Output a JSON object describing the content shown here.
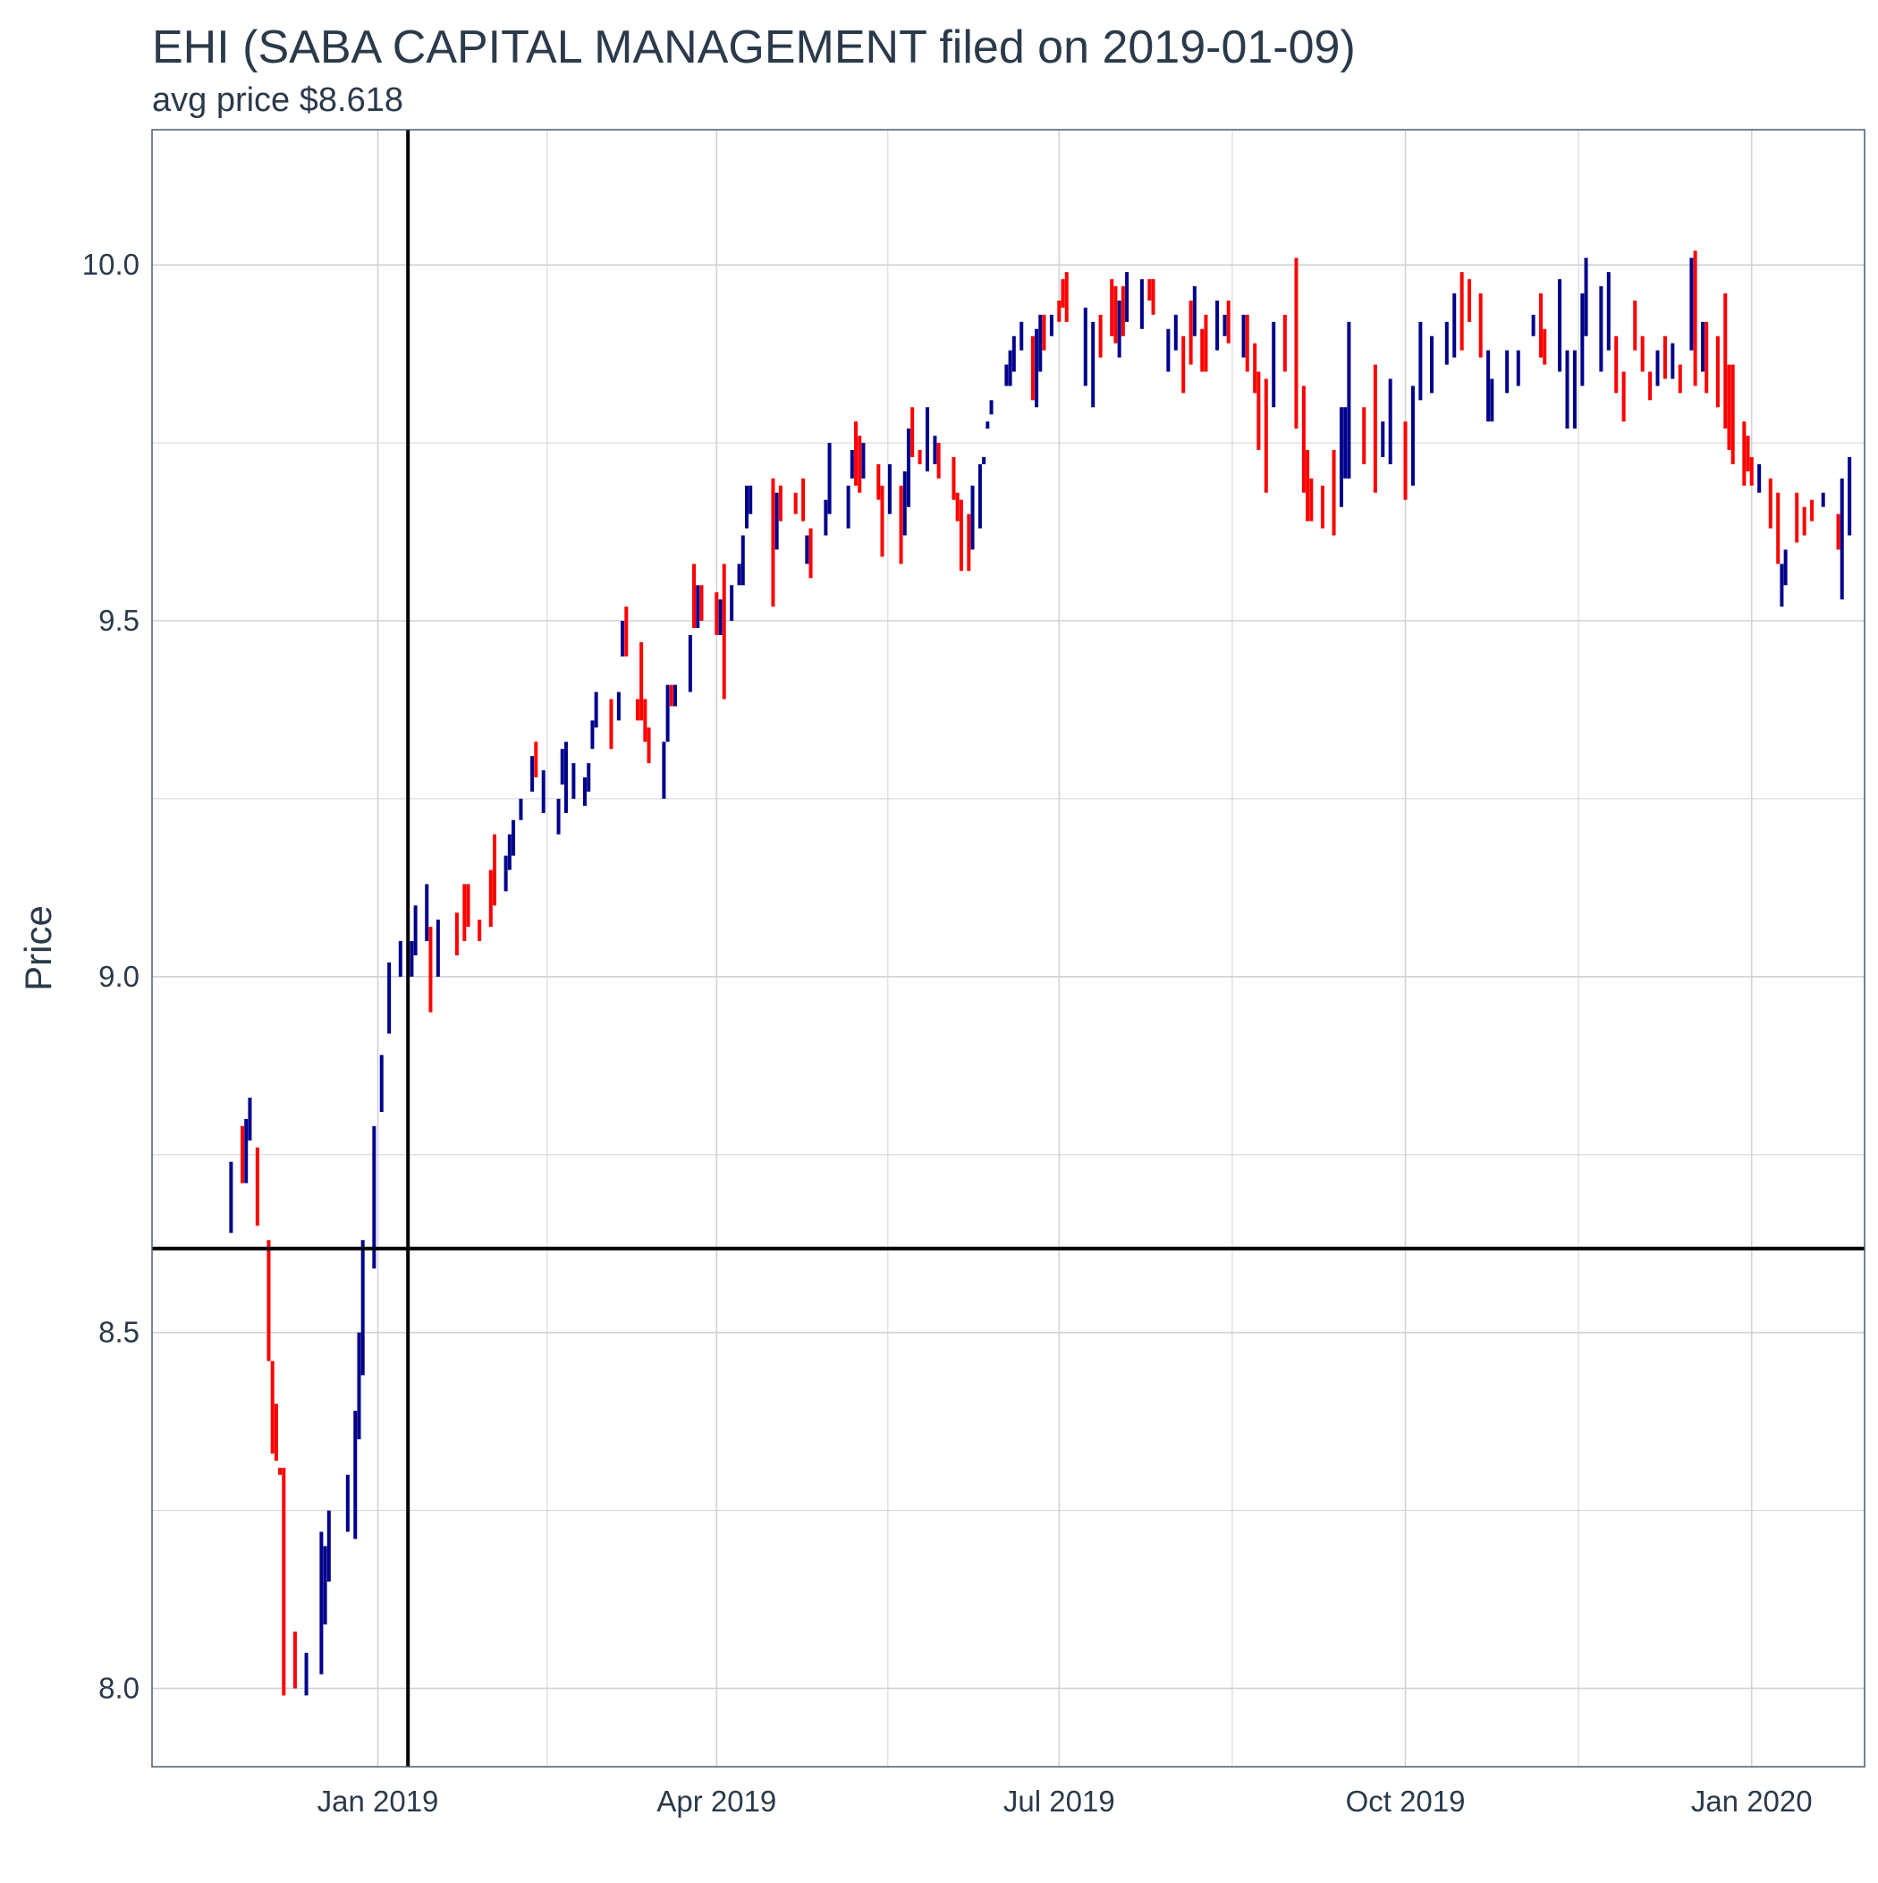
{
  "chart_data": {
    "type": "line",
    "title": "EHI (SABA CAPITAL MANAGEMENT filed on 2019-01-09)",
    "subtitle": "avg price $8.618",
    "xlabel": "",
    "ylabel": "Price",
    "x_range": [
      "2018-11-02",
      "2020-01-31"
    ],
    "ylim": [
      7.89,
      10.19
    ],
    "x_ticks": [
      {
        "date": "2019-01-01",
        "label": "Jan 2019"
      },
      {
        "date": "2019-04-01",
        "label": "Apr 2019"
      },
      {
        "date": "2019-07-01",
        "label": "Jul 2019"
      },
      {
        "date": "2019-10-01",
        "label": "Oct 2019"
      },
      {
        "date": "2020-01-01",
        "label": "Jan 2020"
      }
    ],
    "y_ticks": [
      {
        "value": 8.0,
        "label": "8.0"
      },
      {
        "value": 8.5,
        "label": "8.5"
      },
      {
        "value": 9.0,
        "label": "9.0"
      },
      {
        "value": 9.5,
        "label": "9.5"
      },
      {
        "value": 10.0,
        "label": "10.0"
      }
    ],
    "reference_lines": {
      "filing_date": "2019-01-09",
      "avg_price": 8.618
    },
    "colors": {
      "up": "#00008b",
      "down": "#ff0000",
      "reference": "#000000",
      "grid": "#cfd3d9",
      "panel_border": "#4a5a6a"
    },
    "grid": true,
    "legend": "none",
    "range_bars": [
      [
        "2018-11-23",
        8.64,
        8.74,
        "up"
      ],
      [
        "2018-11-26",
        8.71,
        8.79,
        "down"
      ],
      [
        "2018-11-27",
        8.71,
        8.8,
        "up"
      ],
      [
        "2018-11-28",
        8.77,
        8.83,
        "up"
      ],
      [
        "2018-11-30",
        8.65,
        8.76,
        "down"
      ],
      [
        "2018-12-03",
        8.46,
        8.63,
        "down"
      ],
      [
        "2018-12-04",
        8.33,
        8.46,
        "down"
      ],
      [
        "2018-12-05",
        8.32,
        8.4,
        "down"
      ],
      [
        "2018-12-06",
        8.3,
        8.31,
        "down"
      ],
      [
        "2018-12-07",
        7.99,
        8.31,
        "down"
      ],
      [
        "2018-12-10",
        8.0,
        8.08,
        "down"
      ],
      [
        "2018-12-13",
        7.99,
        8.05,
        "up"
      ],
      [
        "2018-12-17",
        8.02,
        8.22,
        "up"
      ],
      [
        "2018-12-18",
        8.09,
        8.2,
        "up"
      ],
      [
        "2018-12-19",
        8.15,
        8.25,
        "up"
      ],
      [
        "2018-12-24",
        8.22,
        8.3,
        "up"
      ],
      [
        "2018-12-26",
        8.21,
        8.39,
        "up"
      ],
      [
        "2018-12-27",
        8.35,
        8.5,
        "up"
      ],
      [
        "2018-12-28",
        8.44,
        8.63,
        "up"
      ],
      [
        "2018-12-31",
        8.59,
        8.79,
        "up"
      ],
      [
        "2019-01-02",
        8.81,
        8.89,
        "up"
      ],
      [
        "2019-01-04",
        8.92,
        9.02,
        "up"
      ],
      [
        "2019-01-07",
        9.0,
        9.05,
        "up"
      ],
      [
        "2019-01-10",
        9.0,
        9.05,
        "up"
      ],
      [
        "2019-01-11",
        9.03,
        9.1,
        "up"
      ],
      [
        "2019-01-14",
        9.05,
        9.13,
        "up"
      ],
      [
        "2019-01-15",
        8.95,
        9.07,
        "down"
      ],
      [
        "2019-01-17",
        9.0,
        9.08,
        "up"
      ],
      [
        "2019-01-22",
        9.03,
        9.09,
        "down"
      ],
      [
        "2019-01-24",
        9.05,
        9.13,
        "down"
      ],
      [
        "2019-01-25",
        9.07,
        9.13,
        "down"
      ],
      [
        "2019-01-28",
        9.05,
        9.08,
        "down"
      ],
      [
        "2019-01-31",
        9.07,
        9.15,
        "down"
      ],
      [
        "2019-02-01",
        9.1,
        9.2,
        "down"
      ],
      [
        "2019-02-04",
        9.12,
        9.17,
        "up"
      ],
      [
        "2019-02-05",
        9.15,
        9.2,
        "up"
      ],
      [
        "2019-02-06",
        9.17,
        9.22,
        "up"
      ],
      [
        "2019-02-08",
        9.22,
        9.25,
        "up"
      ],
      [
        "2019-02-11",
        9.26,
        9.31,
        "up"
      ],
      [
        "2019-02-12",
        9.28,
        9.33,
        "down"
      ],
      [
        "2019-02-14",
        9.23,
        9.29,
        "up"
      ],
      [
        "2019-02-18",
        9.2,
        9.25,
        "up"
      ],
      [
        "2019-02-19",
        9.27,
        9.32,
        "up"
      ],
      [
        "2019-02-20",
        9.23,
        9.33,
        "up"
      ],
      [
        "2019-02-22",
        9.25,
        9.3,
        "up"
      ],
      [
        "2019-02-25",
        9.24,
        9.28,
        "up"
      ],
      [
        "2019-02-26",
        9.26,
        9.3,
        "up"
      ],
      [
        "2019-02-27",
        9.32,
        9.36,
        "up"
      ],
      [
        "2019-02-28",
        9.35,
        9.4,
        "up"
      ],
      [
        "2019-03-04",
        9.32,
        9.39,
        "down"
      ],
      [
        "2019-03-06",
        9.36,
        9.4,
        "up"
      ],
      [
        "2019-03-07",
        9.45,
        9.5,
        "up"
      ],
      [
        "2019-03-08",
        9.45,
        9.52,
        "down"
      ],
      [
        "2019-03-11",
        9.36,
        9.39,
        "down"
      ],
      [
        "2019-03-12",
        9.36,
        9.47,
        "down"
      ],
      [
        "2019-03-13",
        9.33,
        9.39,
        "down"
      ],
      [
        "2019-03-14",
        9.3,
        9.35,
        "down"
      ],
      [
        "2019-03-18",
        9.25,
        9.33,
        "up"
      ],
      [
        "2019-03-19",
        9.33,
        9.41,
        "up"
      ],
      [
        "2019-03-20",
        9.38,
        9.41,
        "down"
      ],
      [
        "2019-03-21",
        9.38,
        9.41,
        "up"
      ],
      [
        "2019-03-25",
        9.4,
        9.48,
        "up"
      ],
      [
        "2019-03-26",
        9.49,
        9.58,
        "down"
      ],
      [
        "2019-03-27",
        9.49,
        9.55,
        "up"
      ],
      [
        "2019-03-28",
        9.5,
        9.55,
        "down"
      ],
      [
        "2019-04-01",
        9.48,
        9.54,
        "down"
      ],
      [
        "2019-04-02",
        9.48,
        9.53,
        "up"
      ],
      [
        "2019-04-03",
        9.39,
        9.58,
        "down"
      ],
      [
        "2019-04-05",
        9.5,
        9.55,
        "up"
      ],
      [
        "2019-04-07",
        9.55,
        9.58,
        "up"
      ],
      [
        "2019-04-08",
        9.55,
        9.62,
        "up"
      ],
      [
        "2019-04-09",
        9.63,
        9.69,
        "up"
      ],
      [
        "2019-04-10",
        9.65,
        9.69,
        "up"
      ],
      [
        "2019-04-16",
        9.52,
        9.7,
        "down"
      ],
      [
        "2019-04-17",
        9.6,
        9.68,
        "up"
      ],
      [
        "2019-04-18",
        9.64,
        9.69,
        "down"
      ],
      [
        "2019-04-22",
        9.65,
        9.68,
        "down"
      ],
      [
        "2019-04-24",
        9.64,
        9.7,
        "down"
      ],
      [
        "2019-04-25",
        9.58,
        9.62,
        "up"
      ],
      [
        "2019-04-26",
        9.56,
        9.63,
        "down"
      ],
      [
        "2019-04-30",
        9.62,
        9.67,
        "up"
      ],
      [
        "2019-05-01",
        9.65,
        9.75,
        "up"
      ],
      [
        "2019-05-06",
        9.63,
        9.69,
        "up"
      ],
      [
        "2019-05-07",
        9.7,
        9.74,
        "up"
      ],
      [
        "2019-05-08",
        9.69,
        9.78,
        "down"
      ],
      [
        "2019-05-09",
        9.68,
        9.76,
        "down"
      ],
      [
        "2019-05-10",
        9.7,
        9.75,
        "up"
      ],
      [
        "2019-05-14",
        9.67,
        9.72,
        "down"
      ],
      [
        "2019-05-15",
        9.59,
        9.69,
        "down"
      ],
      [
        "2019-05-17",
        9.65,
        9.72,
        "up"
      ],
      [
        "2019-05-20",
        9.58,
        9.69,
        "down"
      ],
      [
        "2019-05-21",
        9.62,
        9.71,
        "up"
      ],
      [
        "2019-05-22",
        9.66,
        9.77,
        "up"
      ],
      [
        "2019-05-23",
        9.73,
        9.8,
        "down"
      ],
      [
        "2019-05-25",
        9.72,
        9.74,
        "down"
      ],
      [
        "2019-05-27",
        9.71,
        9.8,
        "up"
      ],
      [
        "2019-05-29",
        9.72,
        9.76,
        "up"
      ],
      [
        "2019-05-30",
        9.7,
        9.75,
        "down"
      ],
      [
        "2019-06-03",
        9.67,
        9.73,
        "down"
      ],
      [
        "2019-06-04",
        9.64,
        9.68,
        "down"
      ],
      [
        "2019-06-05",
        9.57,
        9.67,
        "down"
      ],
      [
        "2019-06-07",
        9.57,
        9.65,
        "down"
      ],
      [
        "2019-06-08",
        9.6,
        9.69,
        "up"
      ],
      [
        "2019-06-10",
        9.63,
        9.72,
        "up"
      ],
      [
        "2019-06-11",
        9.72,
        9.73,
        "up"
      ],
      [
        "2019-06-12",
        9.77,
        9.78,
        "up"
      ],
      [
        "2019-06-13",
        9.79,
        9.81,
        "up"
      ],
      [
        "2019-06-17",
        9.83,
        9.86,
        "up"
      ],
      [
        "2019-06-18",
        9.83,
        9.88,
        "up"
      ],
      [
        "2019-06-19",
        9.85,
        9.9,
        "up"
      ],
      [
        "2019-06-21",
        9.88,
        9.92,
        "up"
      ],
      [
        "2019-06-24",
        9.81,
        9.9,
        "down"
      ],
      [
        "2019-06-25",
        9.8,
        9.91,
        "up"
      ],
      [
        "2019-06-26",
        9.85,
        9.93,
        "up"
      ],
      [
        "2019-06-27",
        9.88,
        9.93,
        "down"
      ],
      [
        "2019-06-29",
        9.9,
        9.93,
        "up"
      ],
      [
        "2019-07-01",
        9.92,
        9.95,
        "down"
      ],
      [
        "2019-07-02",
        9.94,
        9.98,
        "down"
      ],
      [
        "2019-07-03",
        9.92,
        9.99,
        "down"
      ],
      [
        "2019-07-08",
        9.83,
        9.94,
        "up"
      ],
      [
        "2019-07-10",
        9.8,
        9.92,
        "up"
      ],
      [
        "2019-07-12",
        9.87,
        9.93,
        "down"
      ],
      [
        "2019-07-15",
        9.9,
        9.98,
        "down"
      ],
      [
        "2019-07-16",
        9.89,
        9.97,
        "down"
      ],
      [
        "2019-07-17",
        9.87,
        9.95,
        "up"
      ],
      [
        "2019-07-18",
        9.9,
        9.97,
        "down"
      ],
      [
        "2019-07-19",
        9.92,
        9.99,
        "up"
      ],
      [
        "2019-07-23",
        9.91,
        9.98,
        "up"
      ],
      [
        "2019-07-25",
        9.95,
        9.98,
        "down"
      ],
      [
        "2019-07-26",
        9.93,
        9.98,
        "down"
      ],
      [
        "2019-07-30",
        9.85,
        9.91,
        "up"
      ],
      [
        "2019-08-01",
        9.88,
        9.93,
        "up"
      ],
      [
        "2019-08-03",
        9.82,
        9.9,
        "down"
      ],
      [
        "2019-08-05",
        9.86,
        9.95,
        "down"
      ],
      [
        "2019-08-06",
        9.9,
        9.97,
        "up"
      ],
      [
        "2019-08-08",
        9.85,
        9.91,
        "down"
      ],
      [
        "2019-08-09",
        9.85,
        9.93,
        "down"
      ],
      [
        "2019-08-12",
        9.88,
        9.95,
        "up"
      ],
      [
        "2019-08-14",
        9.9,
        9.93,
        "up"
      ],
      [
        "2019-08-15",
        9.89,
        9.95,
        "down"
      ],
      [
        "2019-08-19",
        9.87,
        9.93,
        "up"
      ],
      [
        "2019-08-20",
        9.85,
        9.93,
        "down"
      ],
      [
        "2019-08-22",
        9.82,
        9.89,
        "down"
      ],
      [
        "2019-08-23",
        9.74,
        9.85,
        "down"
      ],
      [
        "2019-08-25",
        9.68,
        9.84,
        "down"
      ],
      [
        "2019-08-27",
        9.8,
        9.92,
        "up"
      ],
      [
        "2019-08-30",
        9.85,
        9.93,
        "down"
      ],
      [
        "2019-09-02",
        9.77,
        10.01,
        "down"
      ],
      [
        "2019-09-04",
        9.68,
        9.83,
        "down"
      ],
      [
        "2019-09-05",
        9.64,
        9.74,
        "down"
      ],
      [
        "2019-09-06",
        9.64,
        9.7,
        "down"
      ],
      [
        "2019-09-09",
        9.63,
        9.69,
        "down"
      ],
      [
        "2019-09-12",
        9.62,
        9.74,
        "down"
      ],
      [
        "2019-09-14",
        9.66,
        9.8,
        "up"
      ],
      [
        "2019-09-15",
        9.7,
        9.8,
        "up"
      ],
      [
        "2019-09-16",
        9.7,
        9.92,
        "up"
      ],
      [
        "2019-09-20",
        9.72,
        9.8,
        "down"
      ],
      [
        "2019-09-23",
        9.68,
        9.86,
        "down"
      ],
      [
        "2019-09-25",
        9.73,
        9.78,
        "up"
      ],
      [
        "2019-09-27",
        9.72,
        9.84,
        "up"
      ],
      [
        "2019-10-01",
        9.67,
        9.78,
        "down"
      ],
      [
        "2019-10-03",
        9.69,
        9.83,
        "up"
      ],
      [
        "2019-10-05",
        9.81,
        9.92,
        "up"
      ],
      [
        "2019-10-08",
        9.82,
        9.9,
        "up"
      ],
      [
        "2019-10-12",
        9.86,
        9.92,
        "up"
      ],
      [
        "2019-10-14",
        9.87,
        9.96,
        "up"
      ],
      [
        "2019-10-16",
        9.88,
        9.99,
        "down"
      ],
      [
        "2019-10-18",
        9.92,
        9.98,
        "down"
      ],
      [
        "2019-10-21",
        9.87,
        9.96,
        "down"
      ],
      [
        "2019-10-23",
        9.78,
        9.88,
        "up"
      ],
      [
        "2019-10-24",
        9.78,
        9.84,
        "up"
      ],
      [
        "2019-10-28",
        9.82,
        9.88,
        "up"
      ],
      [
        "2019-10-31",
        9.83,
        9.88,
        "up"
      ],
      [
        "2019-11-04",
        9.9,
        9.93,
        "up"
      ],
      [
        "2019-11-06",
        9.87,
        9.96,
        "down"
      ],
      [
        "2019-11-07",
        9.86,
        9.91,
        "down"
      ],
      [
        "2019-11-11",
        9.85,
        9.98,
        "up"
      ],
      [
        "2019-11-13",
        9.77,
        9.88,
        "up"
      ],
      [
        "2019-11-15",
        9.77,
        9.88,
        "up"
      ],
      [
        "2019-11-17",
        9.83,
        9.96,
        "up"
      ],
      [
        "2019-11-18",
        9.9,
        10.01,
        "up"
      ],
      [
        "2019-11-22",
        9.85,
        9.97,
        "up"
      ],
      [
        "2019-11-24",
        9.88,
        9.99,
        "up"
      ],
      [
        "2019-11-26",
        9.82,
        9.9,
        "down"
      ],
      [
        "2019-11-28",
        9.78,
        9.85,
        "down"
      ],
      [
        "2019-12-01",
        9.88,
        9.95,
        "down"
      ],
      [
        "2019-12-03",
        9.85,
        9.9,
        "down"
      ],
      [
        "2019-12-05",
        9.81,
        9.85,
        "down"
      ],
      [
        "2019-12-07",
        9.83,
        9.88,
        "up"
      ],
      [
        "2019-12-09",
        9.84,
        9.9,
        "down"
      ],
      [
        "2019-12-11",
        9.84,
        9.89,
        "up"
      ],
      [
        "2019-12-13",
        9.82,
        9.86,
        "down"
      ],
      [
        "2019-12-16",
        9.88,
        10.01,
        "up"
      ],
      [
        "2019-12-17",
        9.83,
        10.02,
        "down"
      ],
      [
        "2019-12-19",
        9.85,
        9.92,
        "up"
      ],
      [
        "2019-12-20",
        9.82,
        9.92,
        "down"
      ],
      [
        "2019-12-23",
        9.8,
        9.9,
        "down"
      ],
      [
        "2019-12-25",
        9.77,
        9.96,
        "down"
      ],
      [
        "2019-12-26",
        9.74,
        9.86,
        "down"
      ],
      [
        "2019-12-27",
        9.72,
        9.86,
        "down"
      ],
      [
        "2019-12-30",
        9.69,
        9.78,
        "down"
      ],
      [
        "2019-12-31",
        9.71,
        9.76,
        "down"
      ],
      [
        "2020-01-01",
        9.69,
        9.73,
        "down"
      ],
      [
        "2020-01-03",
        9.68,
        9.72,
        "up"
      ],
      [
        "2020-01-06",
        9.63,
        9.7,
        "down"
      ],
      [
        "2020-01-08",
        9.58,
        9.68,
        "down"
      ],
      [
        "2020-01-09",
        9.52,
        9.58,
        "up"
      ],
      [
        "2020-01-10",
        9.55,
        9.6,
        "up"
      ],
      [
        "2020-01-13",
        9.61,
        9.68,
        "down"
      ],
      [
        "2020-01-15",
        9.62,
        9.66,
        "down"
      ],
      [
        "2020-01-17",
        9.64,
        9.67,
        "down"
      ],
      [
        "2020-01-20",
        9.66,
        9.68,
        "up"
      ],
      [
        "2020-01-24",
        9.6,
        9.65,
        "down"
      ],
      [
        "2020-01-25",
        9.53,
        9.7,
        "up"
      ],
      [
        "2020-01-27",
        9.62,
        9.73,
        "up"
      ]
    ]
  }
}
